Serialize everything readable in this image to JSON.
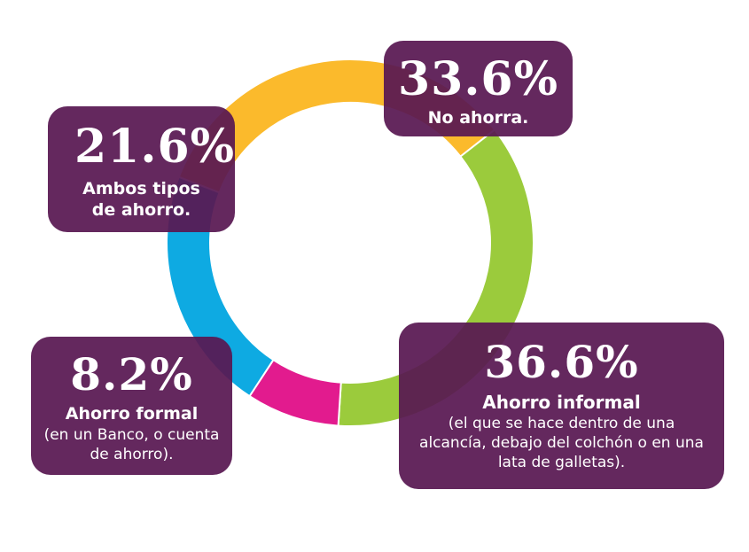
{
  "chart_data": {
    "type": "pie",
    "variant": "donut",
    "title": "",
    "slices": [
      {
        "value": 33.6,
        "label": "33.6%",
        "name": "No ahorra.",
        "description": "",
        "color": "#FBBA2C"
      },
      {
        "value": 36.6,
        "label": "36.6%",
        "name": "Ahorro informal",
        "description": "(el que se hace dentro de una alcancía, debajo del colchón o en una lata de galletas).",
        "color": "#9BCB3C"
      },
      {
        "value": 8.2,
        "label": "8.2%",
        "name": "Ahorro formal",
        "description": "(en un Banco, o cuenta de ahorro).",
        "color": "#E21B8E"
      },
      {
        "value": 21.6,
        "label": "21.6%",
        "name": "Ambos tipos de ahorro.",
        "description": "",
        "color": "#0EAAE2"
      }
    ],
    "legend": "none",
    "grid": false
  },
  "colors": {
    "label_box": "#581852",
    "label_text": "#FFFFFF",
    "background": "#FFFFFF"
  }
}
